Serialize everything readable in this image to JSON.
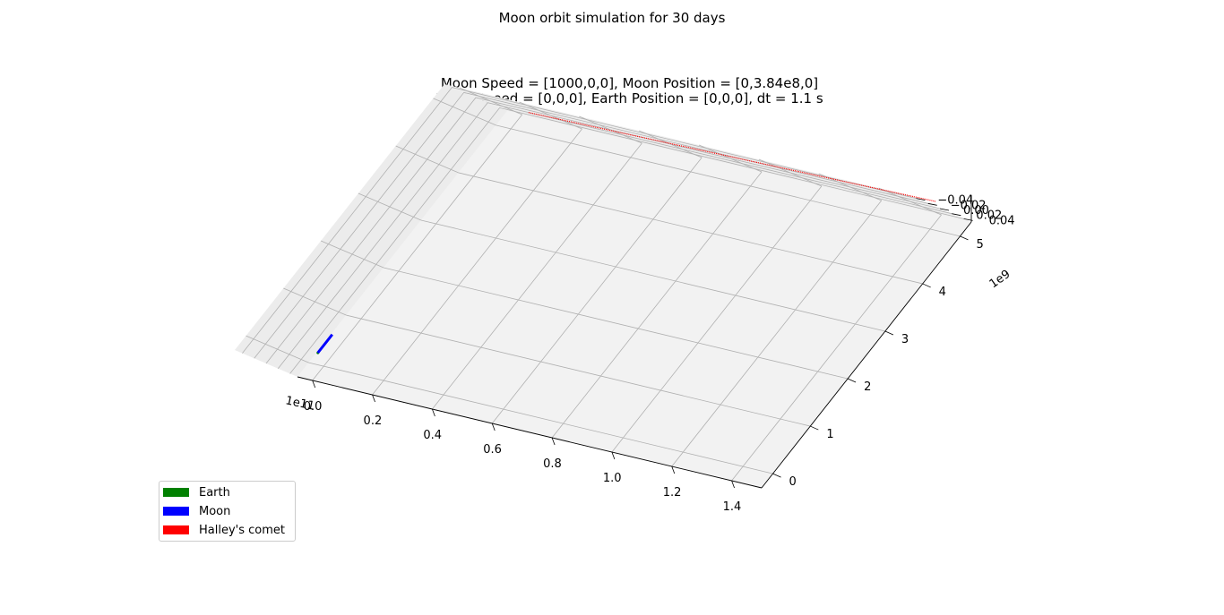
{
  "figure_title": "Moon orbit simulation for 30 days",
  "chart_data": {
    "type": "line",
    "projection": "3d",
    "title_line1": "Moon Speed = [1000,0,0], Moon Position = [0,3.84e8,0]",
    "title_line2": "Earth Speed = [0,0,0], Earth Position = [0,0,0], dt = 1.1 s",
    "x_axis": {
      "offset_label": "1e11",
      "ticks": [
        "0.0",
        "0.2",
        "0.4",
        "0.6",
        "0.8",
        "1.0",
        "1.2",
        "1.4"
      ],
      "range": [
        -0.05,
        1.5
      ]
    },
    "y_axis": {
      "offset_label": "1e9",
      "ticks": [
        "0",
        "1",
        "2",
        "3",
        "4",
        "5"
      ],
      "range": [
        -0.3,
        5.3
      ]
    },
    "z_axis": {
      "ticks": [
        "0.04",
        "0.02",
        "0.00",
        "−0.02",
        "−0.04"
      ],
      "range": [
        -0.05,
        0.05
      ]
    },
    "grid": true,
    "legend_position": "lower-left",
    "series": [
      {
        "name": "Earth",
        "color": "#008000",
        "x": [
          0.0
        ],
        "y": [
          0.0
        ],
        "z": [
          0.0
        ]
      },
      {
        "name": "Moon",
        "color": "#0000ff",
        "x": [
          0.0,
          0.0,
          0.0
        ],
        "y": [
          0.0,
          0.384,
          0.0
        ],
        "z": [
          0.0,
          0.0,
          0.0
        ]
      },
      {
        "name": "Halley's comet",
        "color": "#ff0000",
        "x": [
          0.06,
          1.4
        ],
        "y": [
          5.15,
          5.3
        ],
        "z": [
          0.0,
          0.0
        ]
      }
    ]
  },
  "legend": {
    "items": [
      {
        "label": "Earth",
        "color": "#008000"
      },
      {
        "label": "Moon",
        "color": "#0000ff"
      },
      {
        "label": "Halley's comet",
        "color": "#ff0000"
      }
    ]
  }
}
